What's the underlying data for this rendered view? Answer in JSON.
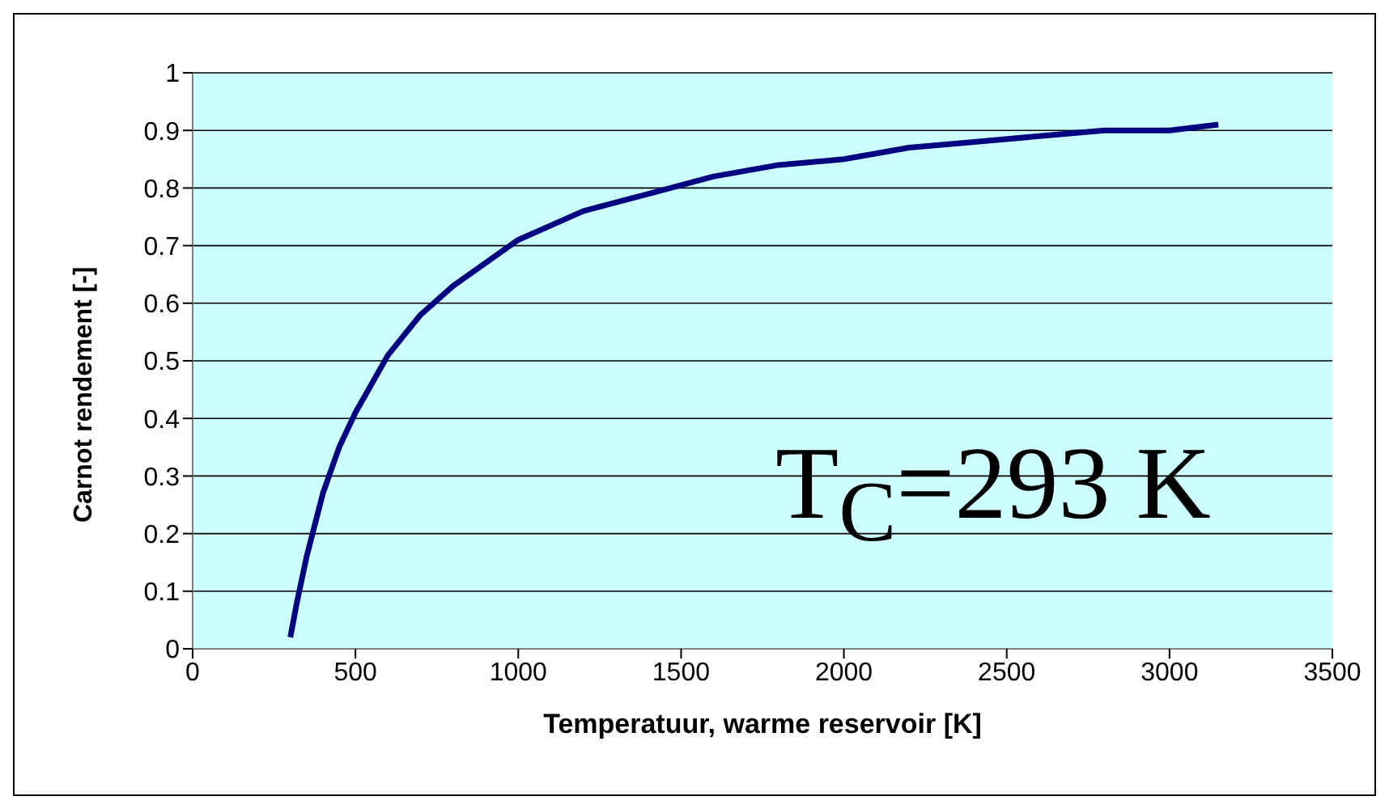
{
  "chart_data": {
    "type": "line",
    "xlabel": "Temperatuur, warme reservoir [K]",
    "ylabel": "Carnot rendement [-]",
    "annotations": [
      "T$_{C}$=293 K"
    ],
    "x": [
      300,
      320,
      350,
      400,
      450,
      500,
      600,
      700,
      800,
      900,
      1000,
      1200,
      1400,
      1600,
      1800,
      2000,
      2200,
      2400,
      2600,
      2800,
      3000,
      3150
    ],
    "series": [
      {
        "color": "#000080",
        "values": [
          0.02,
          0.08,
          0.16,
          0.27,
          0.35,
          0.41,
          0.51,
          0.58,
          0.63,
          0.67,
          0.71,
          0.76,
          0.79,
          0.82,
          0.84,
          0.85,
          0.87,
          0.88,
          0.89,
          0.9,
          0.9,
          0.91
        ]
      }
    ],
    "xlim": [
      0,
      3500
    ],
    "xticks": [
      0,
      500,
      1000,
      1500,
      2000,
      2500,
      3000,
      3500
    ],
    "ylim": [
      0,
      1
    ],
    "yticks": [
      0,
      0.1,
      0.2,
      0.3,
      0.4,
      0.5,
      0.6,
      0.7,
      0.8,
      0.9,
      1
    ],
    "grid": "y",
    "legend": false,
    "marker": "none",
    "line_style": "solid"
  }
}
